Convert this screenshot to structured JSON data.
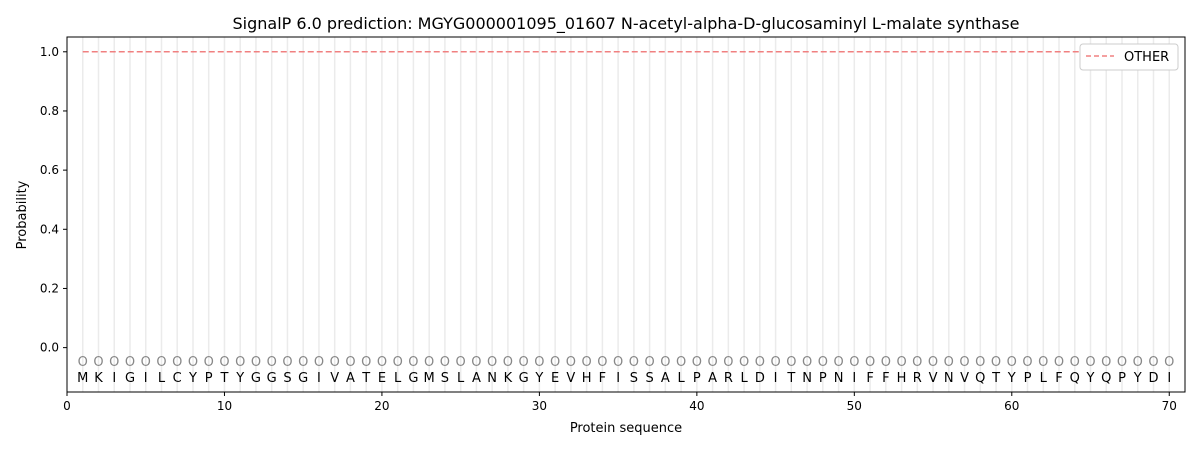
{
  "chart_data": {
    "type": "line",
    "title": "SignalP 6.0 prediction: MGYG000001095_01607 N-acetyl-alpha-D-glucosaminyl L-malate synthase",
    "xlabel": "Protein sequence",
    "ylabel": "Probability",
    "xlim": [
      0,
      71
    ],
    "ylim": [
      -0.15,
      1.05
    ],
    "xticks": [
      0,
      10,
      20,
      30,
      40,
      50,
      60,
      70
    ],
    "yticks": [
      0.0,
      0.2,
      0.4,
      0.6,
      0.8,
      1.0
    ],
    "grid": "vertical lines at each residue",
    "legend_position": "top-right",
    "sequence": [
      "M",
      "K",
      "I",
      "G",
      "I",
      "L",
      "C",
      "Y",
      "P",
      "T",
      "Y",
      "G",
      "G",
      "S",
      "G",
      "I",
      "V",
      "A",
      "T",
      "E",
      "L",
      "G",
      "M",
      "S",
      "L",
      "A",
      "N",
      "K",
      "G",
      "Y",
      "E",
      "V",
      "H",
      "F",
      "I",
      "S",
      "S",
      "A",
      "L",
      "P",
      "A",
      "R",
      "L",
      "D",
      "I",
      "T",
      "N",
      "P",
      "N",
      "I",
      "F",
      "F",
      "H",
      "R",
      "V",
      "N",
      "V",
      "Q",
      "T",
      "Y",
      "P",
      "L",
      "F",
      "Q",
      "Y",
      "Q",
      "P",
      "Y",
      "D",
      "I"
    ],
    "predicted_labels": "OOOOOOOOOOOOOOOOOOOOOOOOOOOOOOOOOOOOOOOOOOOOOOOOOOOOOOOOOOOOOOOOOOOOOO",
    "series": [
      {
        "name": "OTHER",
        "color": "#f08080",
        "style": "dashed",
        "x_range": [
          1,
          70
        ],
        "value": 1.0
      }
    ]
  }
}
